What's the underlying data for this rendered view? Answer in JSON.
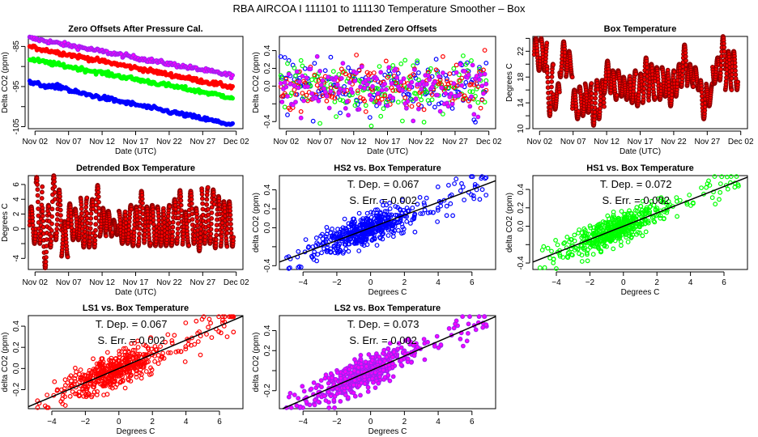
{
  "title": "RBA   AIRCOA I   111101 to 111130   Temperature Smoother – Box",
  "colors": {
    "HS2": "#0000ff",
    "HS1": "#00ff00",
    "LS1": "#ff0000",
    "LS2": "#a020f0",
    "LS2_fill": "#ff00ff",
    "box_temp": "#8b0000",
    "box_temp_fill": "#ff0000",
    "fit_line": "#000000"
  },
  "chart_data": [
    {
      "id": "zero-offsets",
      "type": "scatter",
      "title": "Zero Offsets After Pressure Cal.",
      "xlabel": "Date (UTC)",
      "ylabel": "Delta CO2 (ppm)",
      "x_ticks": [
        "Nov 02",
        "Nov 07",
        "Nov 12",
        "Nov 17",
        "Nov 22",
        "Nov 27",
        "Dec 02"
      ],
      "x_range_days": [
        -1,
        31
      ],
      "y_ticks": [
        -85,
        -90,
        -95,
        -100,
        -105
      ],
      "y_tick_labels": [
        "-85",
        "",
        "-95",
        "",
        "-105"
      ],
      "ylim": [
        -105.5,
        -82.5
      ],
      "series": [
        {
          "name": "LS2",
          "start": -82.9,
          "end": -92.3
        },
        {
          "name": "LS1",
          "start": -85.1,
          "end": -95.2
        },
        {
          "name": "HS1",
          "start": -88.2,
          "end": -97.8
        },
        {
          "name": "HS2",
          "start": -94.0,
          "end": -104.6
        }
      ]
    },
    {
      "id": "detrended-zero-offsets",
      "type": "scatter",
      "title": "Detrended Zero Offsets",
      "xlabel": "Date (UTC)",
      "ylabel": "Delta CO2 (ppm)",
      "x_ticks": [
        "Nov 02",
        "Nov 07",
        "Nov 12",
        "Nov 17",
        "Nov 22",
        "Nov 27",
        "Dec 02"
      ],
      "x_range_days": [
        -1,
        31
      ],
      "y_ticks": [
        -0.4,
        -0.2,
        0.0,
        0.2,
        0.4
      ],
      "y_tick_labels": [
        "-0.4",
        "",
        "0.0",
        "0.2",
        "0.4"
      ],
      "ylim": [
        -0.48,
        0.56
      ],
      "series": [
        "HS2",
        "HS1",
        "LS1",
        "LS2"
      ]
    },
    {
      "id": "box-temperature",
      "type": "scatter",
      "title": "Box Temperature",
      "xlabel": "Date (UTC)",
      "ylabel": "Degrees C",
      "x_ticks": [
        "Nov 02",
        "Nov 07",
        "Nov 12",
        "Nov 17",
        "Nov 22",
        "Nov 27",
        "Dec 02"
      ],
      "x_range_days": [
        -1,
        31
      ],
      "y_ticks": [
        10,
        12,
        14,
        16,
        18,
        20,
        22,
        24
      ],
      "y_tick_labels": [
        "10",
        "",
        "14",
        "",
        "18",
        "",
        "22",
        ""
      ],
      "ylim": [
        10,
        24.3
      ],
      "daily_range": [
        [
          19,
          24
        ],
        [
          19,
          24
        ],
        [
          12,
          20
        ],
        [
          13,
          17
        ],
        [
          18,
          23.5
        ],
        [
          18,
          22
        ],
        [
          11.5,
          16
        ],
        [
          12,
          16.5
        ],
        [
          12.5,
          17
        ],
        [
          10.5,
          17.5
        ],
        [
          11.5,
          17.5
        ],
        [
          15.5,
          20.5
        ],
        [
          14.5,
          19
        ],
        [
          15,
          19
        ],
        [
          14.5,
          18
        ],
        [
          14,
          19
        ],
        [
          13.5,
          18.5
        ],
        [
          14,
          21
        ],
        [
          14.5,
          20
        ],
        [
          14.5,
          19.5
        ],
        [
          15,
          19.5
        ],
        [
          13.5,
          19
        ],
        [
          15,
          20
        ],
        [
          16.5,
          23
        ],
        [
          16.5,
          20
        ],
        [
          16,
          19.5
        ],
        [
          11.5,
          17.5
        ],
        [
          13.5,
          17
        ],
        [
          17,
          21
        ],
        [
          17.5,
          24.3
        ],
        [
          16,
          22
        ],
        [
          16,
          22
        ]
      ]
    },
    {
      "id": "detrended-box-temperature",
      "type": "scatter",
      "title": "Detrended Box Temperature",
      "xlabel": "Date (UTC)",
      "ylabel": "Degrees C",
      "x_ticks": [
        "Nov 02",
        "Nov 07",
        "Nov 12",
        "Nov 17",
        "Nov 22",
        "Nov 27",
        "Dec 02"
      ],
      "x_range_days": [
        -1,
        31
      ],
      "y_ticks": [
        -4,
        -2,
        0,
        2,
        4,
        6
      ],
      "y_tick_labels": [
        "-4",
        "",
        "0",
        "2",
        "4",
        "6"
      ],
      "ylim": [
        -5.5,
        7.2
      ],
      "daily_range": [
        [
          -2,
          3
        ],
        [
          -2,
          7
        ],
        [
          -5.3,
          3.2
        ],
        [
          -2.5,
          7.2
        ],
        [
          -1.5,
          5.3
        ],
        [
          -3.8,
          1
        ],
        [
          -1.5,
          3.4
        ],
        [
          -1.5,
          2.7
        ],
        [
          -2.5,
          4.2
        ],
        [
          -2.5,
          4
        ],
        [
          -2.5,
          5.9
        ],
        [
          -1,
          2.8
        ],
        [
          -1,
          2.4
        ],
        [
          -0.8,
          1.2
        ],
        [
          -2,
          2.4
        ],
        [
          -2,
          3.2
        ],
        [
          -2.3,
          3
        ],
        [
          -2.3,
          5.1
        ],
        [
          -2.3,
          3
        ],
        [
          -2.3,
          3.2
        ],
        [
          -2.3,
          3
        ],
        [
          -2.3,
          3.2
        ],
        [
          -2.3,
          4
        ],
        [
          -2,
          5.2
        ],
        [
          -2.3,
          2.3
        ],
        [
          -2,
          5.1
        ],
        [
          -3,
          2.8
        ],
        [
          -2,
          5.6
        ],
        [
          -2,
          5.3
        ],
        [
          -2.6,
          4.4
        ],
        [
          -2.4,
          3.7
        ],
        [
          -2.4,
          3.7
        ]
      ]
    },
    {
      "id": "hs2-vs-box",
      "type": "scatter",
      "title": "HS2 vs. Box Temperature",
      "xlabel": "Degrees C",
      "ylabel": "delta CO2 (ppm)",
      "series_name": "HS2",
      "x_ticks": [
        -4,
        -2,
        0,
        2,
        4,
        6
      ],
      "xlim": [
        -5.4,
        7.4
      ],
      "y_ticks": [
        -0.4,
        -0.2,
        0.0,
        0.2,
        0.4
      ],
      "y_tick_labels": [
        "-0.4",
        "",
        "0.0",
        "0.2",
        "0.4"
      ],
      "ylim": [
        -0.44,
        0.55
      ],
      "slope": 0.067,
      "annotation": [
        "T. Dep. =  0.067",
        "S. Err. =  0.002"
      ]
    },
    {
      "id": "hs1-vs-box",
      "type": "scatter",
      "title": "HS1 vs. Box Temperature",
      "xlabel": "Degrees C",
      "ylabel": "delta CO2 (ppm)",
      "series_name": "HS1",
      "x_ticks": [
        -4,
        -2,
        0,
        2,
        4,
        6
      ],
      "xlim": [
        -5.4,
        7.4
      ],
      "y_ticks": [
        -0.4,
        -0.2,
        0.0,
        0.2,
        0.4
      ],
      "y_tick_labels": [
        "-0.4",
        "",
        "0.0",
        "0.2",
        "0.4"
      ],
      "ylim": [
        -0.47,
        0.55
      ],
      "slope": 0.072,
      "annotation": [
        "T. Dep. =  0.072",
        "S. Err. =  0.002"
      ]
    },
    {
      "id": "ls1-vs-box",
      "type": "scatter",
      "title": "LS1 vs. Box Temperature",
      "xlabel": "Degrees C",
      "ylabel": "delta CO2 (ppm)",
      "series_name": "LS1",
      "x_ticks": [
        -4,
        -2,
        0,
        2,
        4,
        6
      ],
      "xlim": [
        -5.4,
        7.4
      ],
      "y_ticks": [
        -0.2,
        0.0,
        0.2,
        0.4
      ],
      "y_tick_labels": [
        "-0.2",
        "0.0",
        "0.2",
        "0.4"
      ],
      "ylim": [
        -0.38,
        0.5
      ],
      "slope": 0.067,
      "annotation": [
        "T. Dep. =  0.067",
        "S. Err. =  0.002"
      ]
    },
    {
      "id": "ls2-vs-box",
      "type": "scatter",
      "title": "LS2 vs. Box Temperature",
      "xlabel": "Degrees C",
      "ylabel": "delta CO2 (ppm)",
      "series_name": "LS2",
      "x_ticks": [
        -4,
        -2,
        0,
        2,
        4,
        6
      ],
      "xlim": [
        -5.4,
        7.4
      ],
      "y_ticks": [
        -0.2,
        0.0,
        0.2,
        0.4
      ],
      "y_tick_labels": [
        "-0.2",
        "",
        "0.2",
        "0.4"
      ],
      "ylim": [
        -0.38,
        0.55
      ],
      "slope": 0.073,
      "annotation": [
        "T. Dep. =  0.073",
        "S. Err. =  0.002"
      ]
    }
  ]
}
